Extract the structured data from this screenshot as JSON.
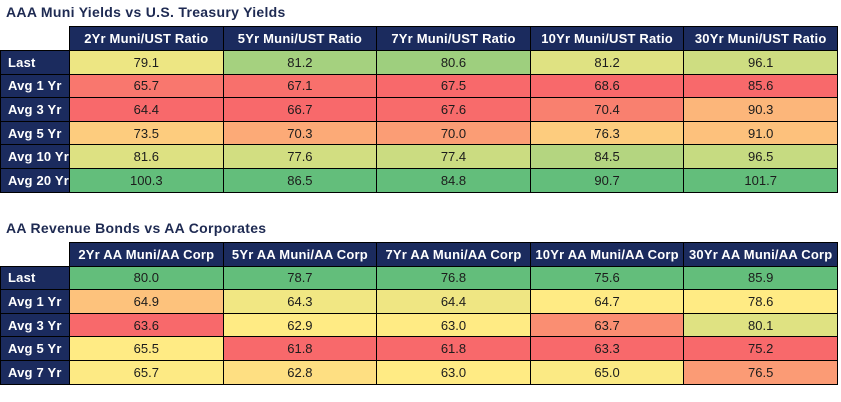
{
  "page": {
    "background": "#FFFFFF",
    "header_bg": "#1B2B5E",
    "title_color": "#1E2A52",
    "header_text_color": "#FFFFFF",
    "cell_text_color": "#1C1C1C",
    "border_color": "#000000"
  },
  "chart_data": [
    {
      "type": "heatmap",
      "title": "AAA Muni Yields vs U.S. Treasury Yields",
      "columns": [
        "2Yr Muni/UST Ratio",
        "5Yr Muni/UST Ratio",
        "7Yr Muni/UST Ratio",
        "10Yr Muni/UST Ratio",
        "30Yr Muni/UST Ratio"
      ],
      "rows": [
        "Last",
        "Avg 1 Yr",
        "Avg 3 Yr",
        "Avg 5 Yr",
        "Avg 10 Yr",
        "Avg 20 Yr"
      ],
      "values": [
        [
          79.1,
          81.2,
          80.6,
          81.2,
          96.1
        ],
        [
          65.7,
          67.1,
          67.5,
          68.6,
          85.6
        ],
        [
          64.4,
          66.7,
          67.6,
          70.4,
          90.3
        ],
        [
          73.5,
          70.3,
          70.0,
          76.3,
          91.0
        ],
        [
          81.6,
          77.6,
          77.4,
          84.5,
          96.5
        ],
        [
          100.3,
          86.5,
          84.8,
          90.7,
          101.7
        ]
      ],
      "cell_colors": [
        [
          "#EDE683",
          "#A5D17F",
          "#9ECF7E",
          "#DFE282",
          "#CEDD81"
        ],
        [
          "#F9776E",
          "#F8706C",
          "#F8696B",
          "#F8696B",
          "#F8696B"
        ],
        [
          "#F8696B",
          "#F8696B",
          "#F86B6B",
          "#F9806F",
          "#FCB67A"
        ],
        [
          "#FDCC7E",
          "#FCAA77",
          "#FB9D75",
          "#FDCC7E",
          "#FDC17C"
        ],
        [
          "#DDE182",
          "#D2DE81",
          "#CBDC81",
          "#B4D580",
          "#C6DB81"
        ],
        [
          "#63BE7B",
          "#63BE7B",
          "#63BE7B",
          "#63BE7B",
          "#63BE7B"
        ]
      ],
      "color_scale": {
        "low": "#F8696B",
        "mid": "#FFEB84",
        "high": "#63BE7B",
        "applied": "per-column, min/median/max"
      },
      "value_format": "0.1"
    },
    {
      "type": "heatmap",
      "title": "AA Revenue Bonds vs AA Corporates",
      "columns": [
        "2Yr AA Muni/AA Corp",
        "5Yr AA Muni/AA Corp",
        "7Yr AA Muni/AA Corp",
        "10Yr AA Muni/AA Corp",
        "30Yr AA Muni/AA Corp"
      ],
      "rows": [
        "Last",
        "Avg 1 Yr",
        "Avg 3 Yr",
        "Avg 5 Yr",
        "Avg 7 Yr"
      ],
      "values": [
        [
          80.0,
          78.7,
          76.8,
          75.6,
          85.9
        ],
        [
          64.9,
          64.3,
          64.4,
          64.7,
          78.6
        ],
        [
          63.6,
          62.9,
          63.0,
          63.7,
          80.1
        ],
        [
          65.5,
          61.8,
          61.8,
          63.3,
          75.2
        ],
        [
          65.7,
          62.8,
          63.0,
          65.0,
          76.5
        ]
      ],
      "cell_colors": [
        [
          "#63BE7B",
          "#63BE7B",
          "#63BE7B",
          "#63BE7B",
          "#63BE7B"
        ],
        [
          "#FDC27C",
          "#F1E783",
          "#EFE683",
          "#FFEB84",
          "#FFEB84"
        ],
        [
          "#F8696B",
          "#FFEB84",
          "#FFEB84",
          "#FA8E72",
          "#DFE282"
        ],
        [
          "#FFEB84",
          "#F8696B",
          "#F8696B",
          "#F8696B",
          "#F8696B"
        ],
        [
          "#FDEA84",
          "#FEDF82",
          "#FFEB84",
          "#FBEA84",
          "#FB9B75"
        ]
      ],
      "color_scale": {
        "low": "#F8696B",
        "mid": "#FFEB84",
        "high": "#63BE7B",
        "applied": "per-column, min/median/max"
      },
      "value_format": "0.1"
    }
  ]
}
